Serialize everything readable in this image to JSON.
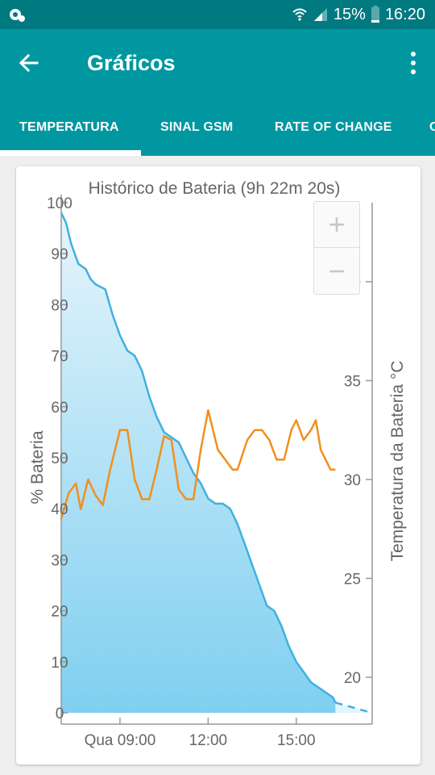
{
  "status_bar": {
    "battery_percent": "15%",
    "time": "16:20",
    "icons": [
      "notification-icon",
      "wifi-icon",
      "signal-icon",
      "battery-icon"
    ]
  },
  "app_bar": {
    "title": "Gráficos",
    "back_icon": "arrow-back-icon",
    "menu_icon": "more-vert-icon"
  },
  "tabs": [
    {
      "label": "TEMPERATURA",
      "selected": true
    },
    {
      "label": "SINAL GSM",
      "selected": false
    },
    {
      "label": "RATE OF CHANGE",
      "selected": false
    },
    {
      "label": "C",
      "selected": false
    }
  ],
  "zoom": {
    "in": "+",
    "out": "−"
  },
  "colors": {
    "primary": "#0097a0",
    "primary_dark": "#007a80",
    "battery_line": "#3fb1e0",
    "temperature_line": "#f0901e",
    "axis_text": "#666666"
  },
  "chart_data": {
    "type": "line",
    "title": "Histórico de Bateria (9h 22m 20s)",
    "ylabel": "% Bateria",
    "y2label": "Temperatura da Bateria °C",
    "ylim": [
      0,
      100
    ],
    "y2lim": [
      18.2,
      44
    ],
    "x_domain": [
      "Qua 07:00",
      "Qua 17:35"
    ],
    "x_ticks": [
      "Qua 09:00",
      "12:00",
      "15:00"
    ],
    "y_ticks": [
      "0",
      "10",
      "20",
      "30",
      "40",
      "50",
      "60",
      "70",
      "80",
      "90",
      "100"
    ],
    "y2_ticks": [
      "20",
      "25",
      "30",
      "35",
      "40"
    ],
    "series": [
      {
        "name": "% Bateria",
        "axis": "left",
        "x": [
          "07:00",
          "07:10",
          "07:20",
          "07:35",
          "07:50",
          "08:00",
          "08:10",
          "08:30",
          "08:45",
          "09:00",
          "09:15",
          "09:30",
          "09:45",
          "10:00",
          "10:15",
          "10:30",
          "10:45",
          "11:00",
          "11:15",
          "11:30",
          "11:45",
          "12:00",
          "12:15",
          "12:30",
          "12:45",
          "13:00",
          "13:15",
          "13:30",
          "13:45",
          "14:00",
          "14:15",
          "14:30",
          "14:45",
          "15:00",
          "15:15",
          "15:30",
          "15:45",
          "16:00",
          "16:15",
          "16:20"
        ],
        "values": [
          98,
          96,
          92,
          88,
          87,
          85,
          84,
          83,
          78,
          74,
          71,
          70,
          67,
          62,
          58,
          55,
          54,
          53,
          50,
          47,
          45,
          42,
          41,
          41,
          40,
          37,
          33,
          29,
          25,
          21,
          20,
          17,
          13,
          10,
          8,
          6,
          5,
          4,
          3,
          2
        ]
      },
      {
        "name": "Temperatura da Bateria",
        "axis": "right",
        "x": [
          "07:00",
          "07:15",
          "07:30",
          "07:40",
          "07:55",
          "08:10",
          "08:25",
          "08:40",
          "09:00",
          "09:15",
          "09:30",
          "09:45",
          "10:00",
          "10:15",
          "10:30",
          "10:45",
          "11:00",
          "11:15",
          "11:30",
          "11:45",
          "12:00",
          "12:10",
          "12:20",
          "12:35",
          "12:50",
          "13:00",
          "13:20",
          "13:35",
          "13:50",
          "14:05",
          "14:20",
          "14:35",
          "14:50",
          "15:00",
          "15:15",
          "15:30",
          "15:40",
          "15:50",
          "16:00",
          "16:10",
          "16:20"
        ],
        "values": [
          28.0,
          29.3,
          29.8,
          28.5,
          30.0,
          29.2,
          28.7,
          30.5,
          32.5,
          32.5,
          30.0,
          29.0,
          29.0,
          30.5,
          32.2,
          32.0,
          29.5,
          29.0,
          29.0,
          31.5,
          33.5,
          32.5,
          31.5,
          31.0,
          30.5,
          30.5,
          32.0,
          32.5,
          32.5,
          32.0,
          31.0,
          31.0,
          32.5,
          33.0,
          32.0,
          32.5,
          33.0,
          31.5,
          31.0,
          30.5,
          30.5
        ]
      }
    ],
    "projection_values": [
      2,
      0
    ],
    "grid": false,
    "legend": "none"
  }
}
